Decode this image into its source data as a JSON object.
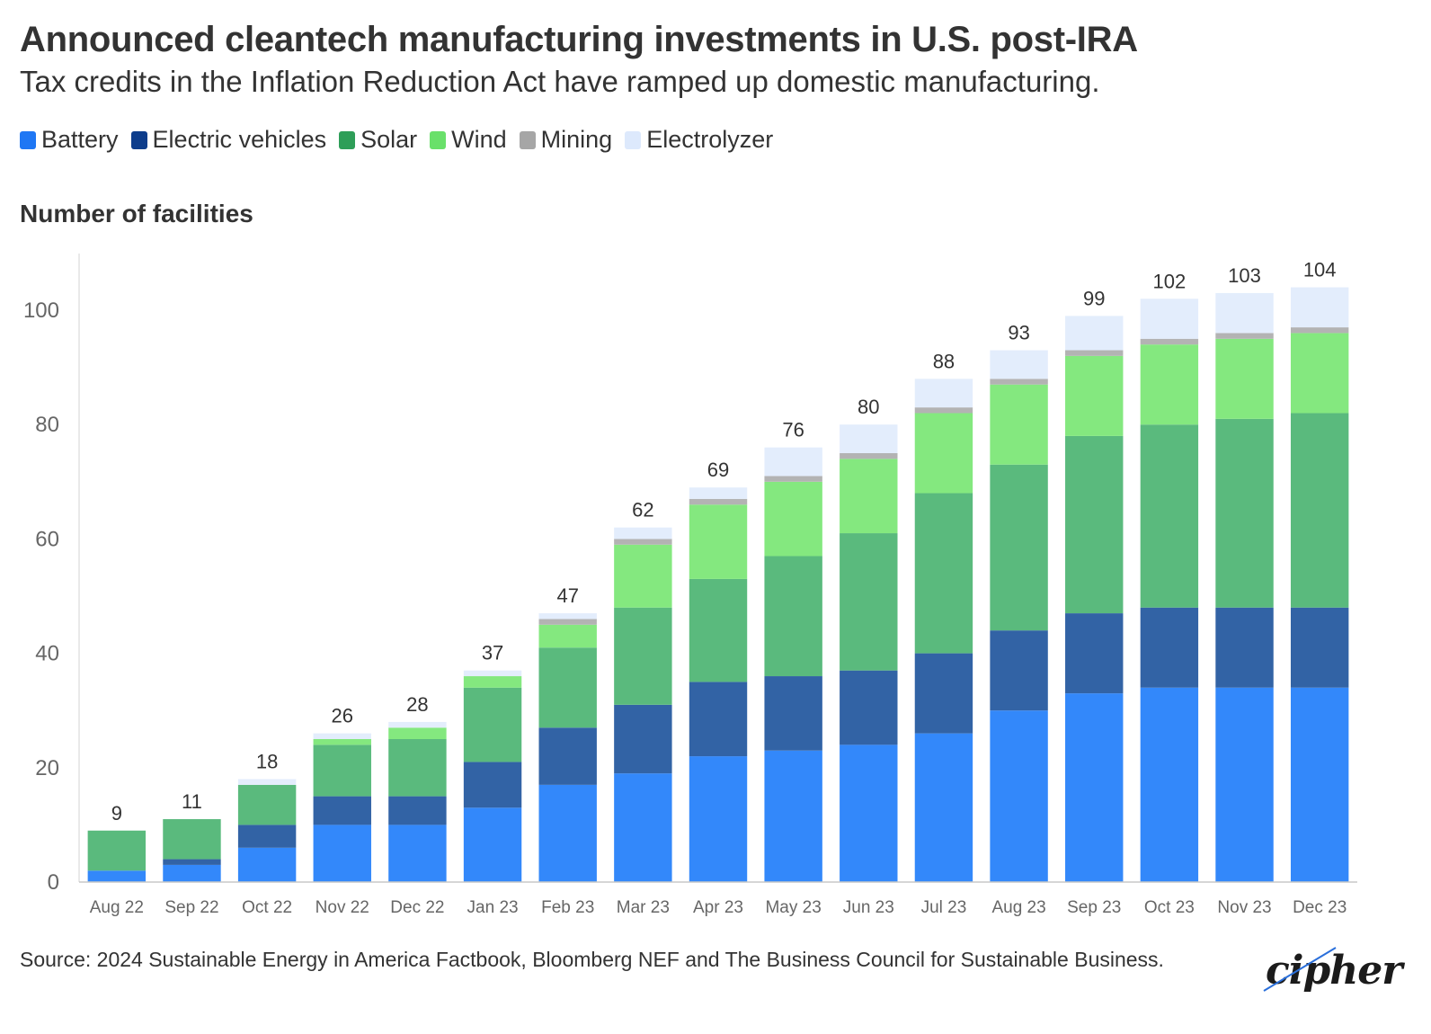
{
  "header": {
    "title": "Announced cleantech manufacturing investments in U.S. post-IRA",
    "subtitle": "Tax credits in the Inflation Reduction Act have ramped up domestic manufacturing."
  },
  "legend": [
    {
      "label": "Battery",
      "color": "#1f77f4"
    },
    {
      "label": "Electric vehicles",
      "color": "#0d3d8c"
    },
    {
      "label": "Solar",
      "color": "#2e9e58"
    },
    {
      "label": "Wind",
      "color": "#69e06a"
    },
    {
      "label": "Mining",
      "color": "#a6a6a6"
    },
    {
      "label": "Electrolyzer",
      "color": "#dde9fc"
    }
  ],
  "footer": {
    "source": "Source: 2024 Sustainable Energy in America Factbook, Bloomberg NEF and The Business Council for Sustainable Business.",
    "logo": "cipher"
  },
  "chart_data": {
    "type": "bar",
    "stacked": true,
    "ylabel": "Number of facilities",
    "xlabel": "",
    "ylim": [
      0,
      110
    ],
    "yticks": [
      0,
      20,
      40,
      60,
      80,
      100
    ],
    "grid": false,
    "categories": [
      "Aug 22",
      "Sep 22",
      "Oct 22",
      "Nov 22",
      "Dec 22",
      "Jan 23",
      "Feb 23",
      "Mar 23",
      "Apr 23",
      "May 23",
      "Jun 23",
      "Jul 23",
      "Aug 23",
      "Sep 23",
      "Oct 23",
      "Nov 23",
      "Dec 23"
    ],
    "totals": [
      9,
      11,
      18,
      26,
      28,
      37,
      47,
      62,
      69,
      76,
      80,
      88,
      93,
      99,
      102,
      103,
      104
    ],
    "series": [
      {
        "name": "Battery",
        "color": "#3388fa",
        "values": [
          2,
          3,
          6,
          10,
          10,
          13,
          17,
          19,
          22,
          23,
          24,
          26,
          30,
          33,
          34,
          34,
          34
        ]
      },
      {
        "name": "Electric vehicles",
        "color": "#3263a5",
        "values": [
          0,
          1,
          4,
          5,
          5,
          8,
          10,
          12,
          13,
          13,
          13,
          14,
          14,
          14,
          14,
          14,
          14
        ]
      },
      {
        "name": "Solar",
        "color": "#5aba7d",
        "values": [
          7,
          7,
          7,
          9,
          10,
          13,
          14,
          17,
          18,
          21,
          24,
          28,
          29,
          31,
          32,
          33,
          34
        ]
      },
      {
        "name": "Wind",
        "color": "#84e87f",
        "values": [
          0,
          0,
          0,
          1,
          2,
          2,
          4,
          11,
          13,
          13,
          13,
          14,
          14,
          14,
          14,
          14,
          14
        ]
      },
      {
        "name": "Mining",
        "color": "#b3b3b3",
        "values": [
          0,
          0,
          0,
          0,
          0,
          0,
          1,
          1,
          1,
          1,
          1,
          1,
          1,
          1,
          1,
          1,
          1
        ]
      },
      {
        "name": "Electrolyzer",
        "color": "#e3edfc",
        "values": [
          0,
          0,
          1,
          1,
          1,
          1,
          1,
          2,
          2,
          5,
          5,
          5,
          5,
          6,
          7,
          7,
          7
        ]
      }
    ]
  }
}
